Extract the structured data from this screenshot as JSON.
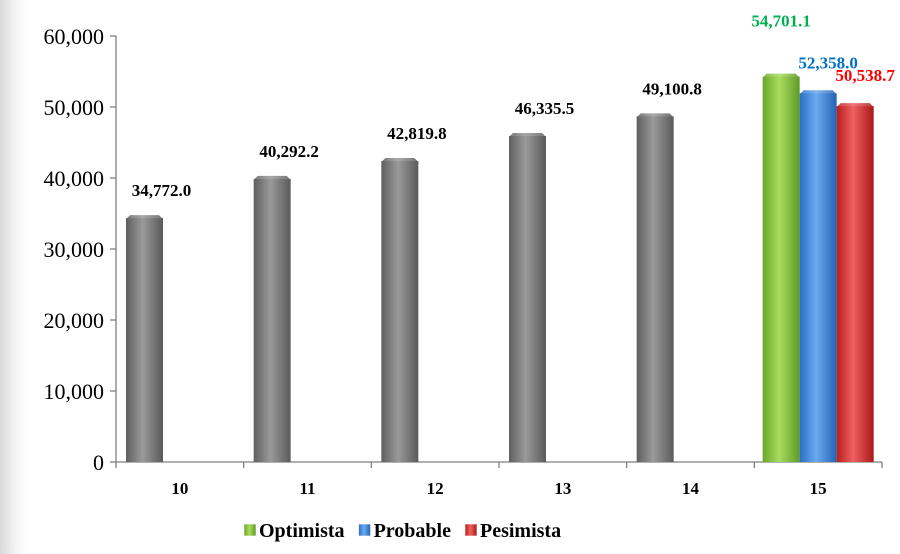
{
  "chart_data": {
    "type": "bar",
    "title": "",
    "xlabel": "",
    "ylabel": "",
    "ylim": [
      0,
      60000
    ],
    "yticks": [
      0,
      10000,
      20000,
      30000,
      40000,
      50000,
      60000
    ],
    "ytick_labels": [
      "0",
      "10,000",
      "20,000",
      "30,000",
      "40,000",
      "50,000",
      "60,000"
    ],
    "categories": [
      "10",
      "11",
      "12",
      "13",
      "14",
      "15"
    ],
    "historical": {
      "color": "#7f7f7f",
      "values": [
        34772.0,
        40292.2,
        42819.8,
        46335.5,
        49100.8
      ],
      "labels": [
        "34,772.0",
        "40,292.2",
        "42,819.8",
        "46,335.5",
        "49,100.8"
      ],
      "label_color": "#000000"
    },
    "series": [
      {
        "name": "Optimista",
        "category": "15",
        "value": 54701.1,
        "label": "54,701.1",
        "color": "#92d050",
        "label_color": "#00b050"
      },
      {
        "name": "Probable",
        "category": "15",
        "value": 52358.0,
        "label": "52,358.0",
        "color": "#4a90e2",
        "label_color": "#0070c0"
      },
      {
        "name": "Pesimista",
        "category": "15",
        "value": 50538.7,
        "label": "50,538.7",
        "color": "#e03c3c",
        "label_color": "#ff0000"
      }
    ],
    "legend": {
      "position": "bottom",
      "entries": [
        "Optimista",
        "Probable",
        "Pesimista"
      ]
    },
    "grid": false
  }
}
